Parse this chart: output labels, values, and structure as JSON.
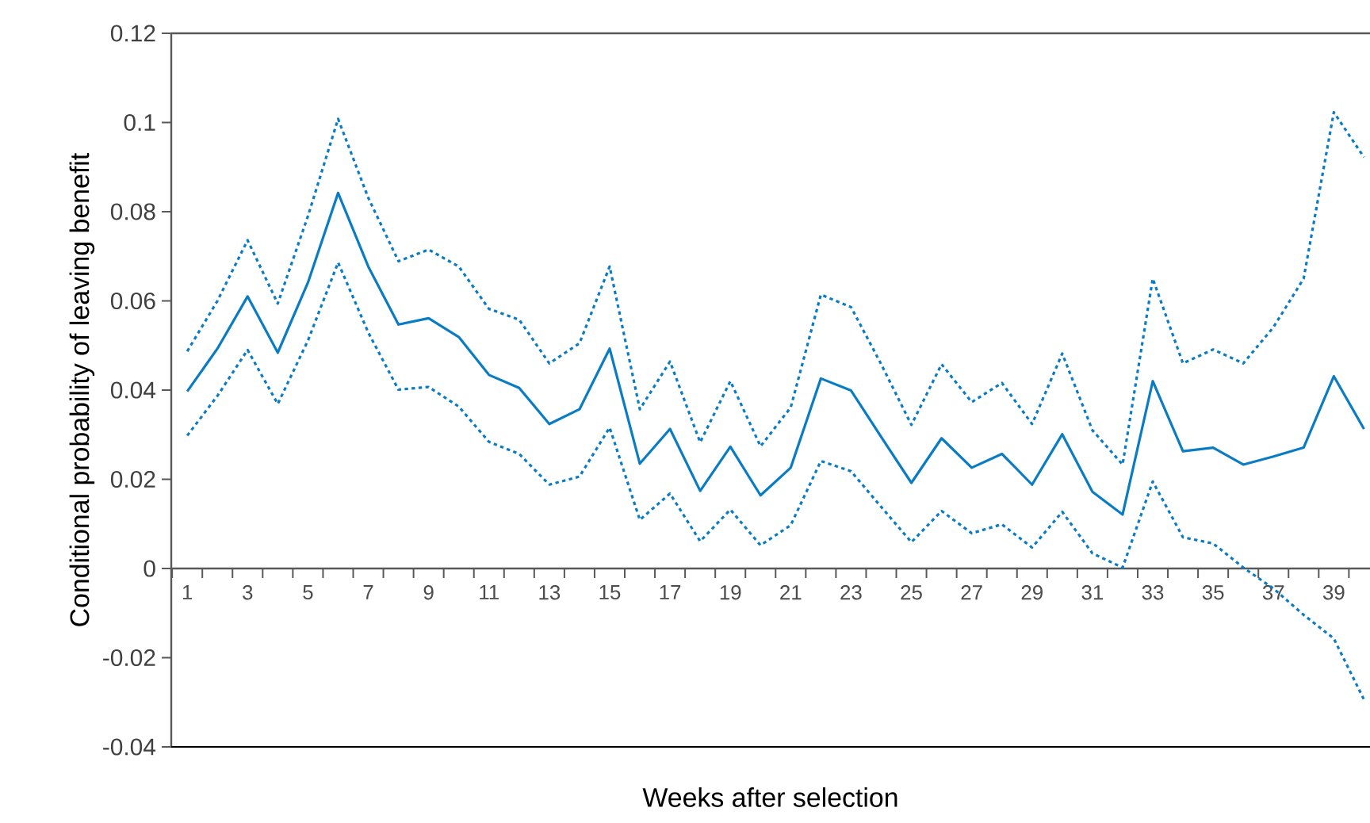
{
  "chart_data": {
    "type": "line",
    "xlabel": "Weeks after selection",
    "ylabel": "Conditional probability of leaving benefit",
    "categories": [
      "1",
      null,
      "3",
      null,
      "5",
      null,
      "7",
      null,
      "9",
      null,
      "11",
      null,
      "13",
      null,
      "15",
      null,
      "17",
      null,
      "19",
      null,
      "21",
      null,
      "23",
      null,
      "25",
      null,
      "27",
      null,
      "29",
      null,
      "31",
      null,
      "33",
      null,
      "35",
      null,
      "37",
      null,
      "39",
      null
    ],
    "ylim": [
      -0.04,
      0.12
    ],
    "yticks": [
      -0.04,
      -0.02,
      0,
      0.02,
      0.04,
      0.06,
      0.08,
      0.1,
      0.12
    ],
    "series": [
      {
        "color": "#0a7cc4",
        "line_style": "solid",
        "values": [
          0.0397,
          0.0493,
          0.061,
          0.0484,
          0.0641,
          0.0842,
          0.0677,
          0.0547,
          0.0561,
          0.0519,
          0.0434,
          0.0405,
          0.0324,
          0.0357,
          0.0493,
          0.0235,
          0.0313,
          0.0174,
          0.0273,
          0.0164,
          0.0226,
          0.0426,
          0.0399,
          0.0295,
          0.0192,
          0.0292,
          0.0226,
          0.0257,
          0.0188,
          0.0301,
          0.0172,
          0.0121,
          0.042,
          0.0263,
          0.0271,
          0.0233,
          0.0251,
          0.0271,
          0.0431,
          0.0313
        ]
      },
      {
        "color": "#0a7cc4",
        "line_style": "dotted",
        "values": [
          0.0487,
          0.06,
          0.0736,
          0.0594,
          0.079,
          0.1008,
          0.0831,
          0.0689,
          0.0715,
          0.0677,
          0.0582,
          0.0558,
          0.046,
          0.0505,
          0.0677,
          0.0357,
          0.0464,
          0.0283,
          0.042,
          0.0274,
          0.0361,
          0.0614,
          0.0586,
          0.0458,
          0.0322,
          0.0458,
          0.0373,
          0.0416,
          0.0324,
          0.0482,
          0.031,
          0.0233,
          0.065,
          0.046,
          0.0491,
          0.046,
          0.0541,
          0.065,
          0.1023,
          0.0922
        ]
      },
      {
        "color": "#0a7cc4",
        "line_style": "dotted",
        "values": [
          0.0298,
          0.0387,
          0.049,
          0.0369,
          0.0511,
          0.0686,
          0.0529,
          0.0401,
          0.0407,
          0.0363,
          0.0284,
          0.0257,
          0.0188,
          0.0206,
          0.0316,
          0.0109,
          0.0168,
          0.0061,
          0.0132,
          0.0052,
          0.0097,
          0.0241,
          0.0218,
          0.0138,
          0.0059,
          0.0129,
          0.0079,
          0.0099,
          0.0047,
          0.0127,
          0.0034,
          0.0002,
          0.0195,
          0.007,
          0.0056,
          0.0002,
          -0.0045,
          -0.0104,
          -0.0157,
          -0.0294
        ]
      }
    ]
  }
}
